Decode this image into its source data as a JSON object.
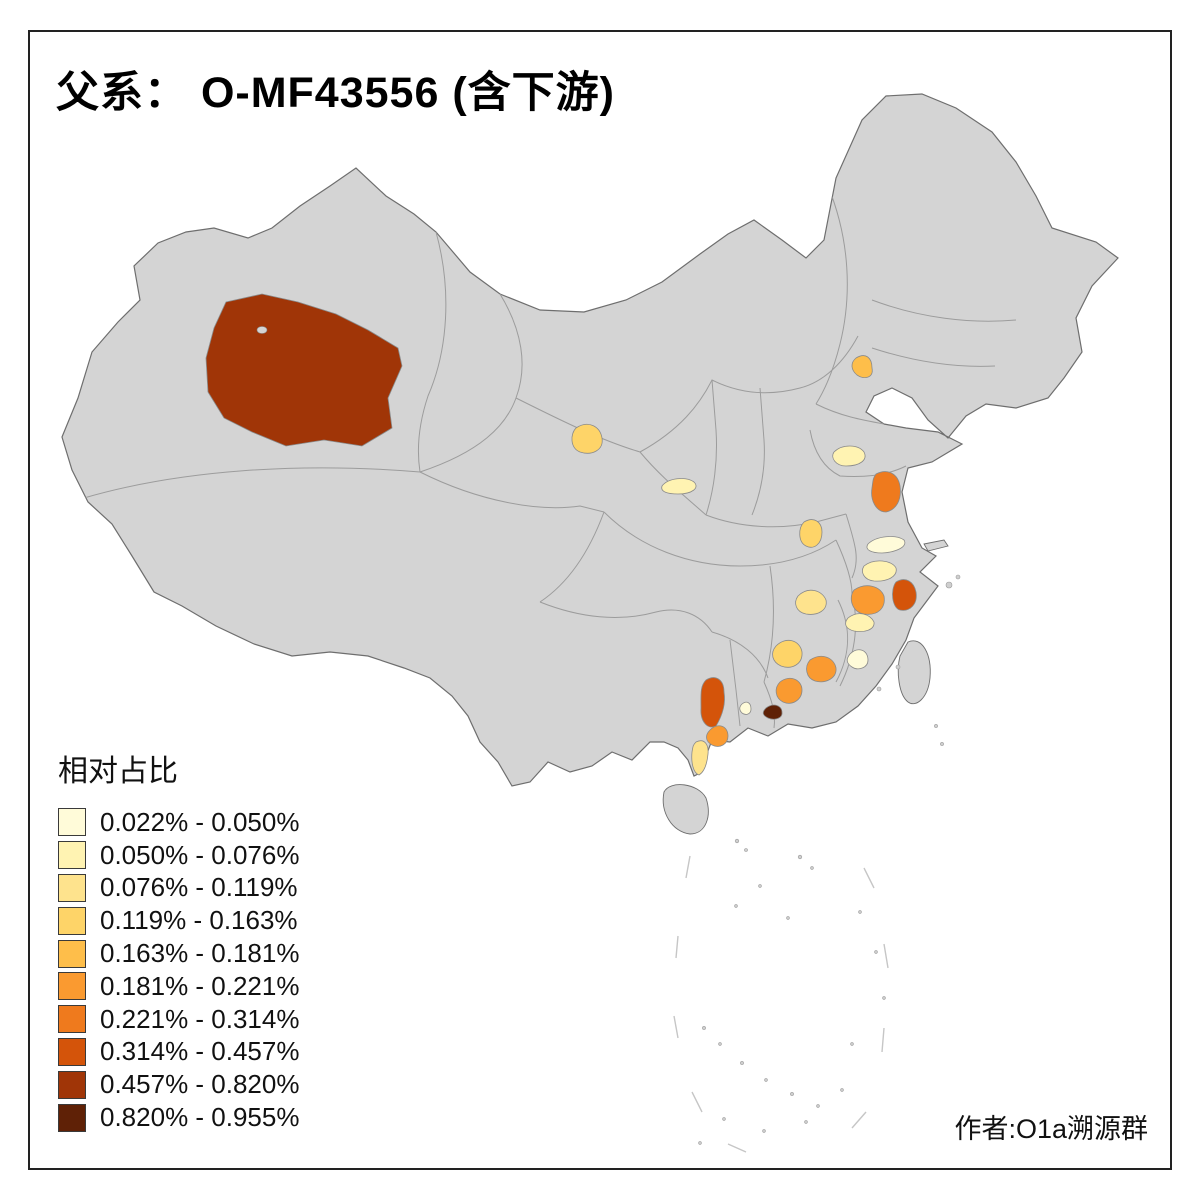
{
  "page": {
    "background": "#ffffff",
    "frame_color": "#222222"
  },
  "title": "父系： O-MF43556 (含下游)",
  "attribution": "作者:O1a溯源群",
  "legend": {
    "title": "相对占比",
    "buckets": [
      {
        "label": "0.022% - 0.050%",
        "color": "#FFFBD9"
      },
      {
        "label": "0.050% - 0.076%",
        "color": "#FFF3B2"
      },
      {
        "label": "0.076% - 0.119%",
        "color": "#FEE38D"
      },
      {
        "label": "0.119% - 0.163%",
        "color": "#FED468"
      },
      {
        "label": "0.163% - 0.181%",
        "color": "#FEBE4A"
      },
      {
        "label": "0.181% - 0.221%",
        "color": "#FA9A30"
      },
      {
        "label": "0.221% - 0.314%",
        "color": "#EF7A1D"
      },
      {
        "label": "0.314% - 0.457%",
        "color": "#D4540A"
      },
      {
        "label": "0.457% - 0.820%",
        "color": "#A03507"
      },
      {
        "label": "0.820% - 0.955%",
        "color": "#5F2106"
      }
    ]
  },
  "map": {
    "land_color": "#d4d4d4",
    "outline_color": "#6e6e6e",
    "province_border_color": "#9c9c9c",
    "sea_color": "#ffffff"
  },
  "chart_data": {
    "type": "choropleth",
    "title": "父系： O-MF43556 (含下游)",
    "legend_title": "相对占比",
    "unit": "%",
    "bins": [
      "0.022% - 0.050%",
      "0.050% - 0.076%",
      "0.076% - 0.119%",
      "0.119% - 0.163%",
      "0.163% - 0.181%",
      "0.181% - 0.221%",
      "0.221% - 0.314%",
      "0.314% - 0.457%",
      "0.457% - 0.820%",
      "0.820% - 0.955%"
    ],
    "regions": [
      {
        "area": "southern-xinjiang",
        "bucket": 8,
        "range": "0.457% - 0.820%"
      },
      {
        "area": "central-gansu",
        "bucket": 3,
        "range": "0.119% - 0.163%"
      },
      {
        "area": "central-shaanxi",
        "bucket": 1,
        "range": "0.050% - 0.076%"
      },
      {
        "area": "hebei-coast",
        "bucket": 4,
        "range": "0.163% - 0.181%"
      },
      {
        "area": "central-shandong",
        "bucket": 1,
        "range": "0.050% - 0.076%"
      },
      {
        "area": "jiangsu-coast",
        "bucket": 6,
        "range": "0.221% - 0.314%"
      },
      {
        "area": "central-anhui",
        "bucket": 3,
        "range": "0.119% - 0.163%"
      },
      {
        "area": "southern-jiangsu",
        "bucket": 0,
        "range": "0.022% - 0.050%"
      },
      {
        "area": "northern-zhejiang",
        "bucket": 1,
        "range": "0.050% - 0.076%"
      },
      {
        "area": "central-zhejiang",
        "bucket": 5,
        "range": "0.181% - 0.221%"
      },
      {
        "area": "zhejiang-coast",
        "bucket": 7,
        "range": "0.314% - 0.457%"
      },
      {
        "area": "southern-zhejiang",
        "bucket": 1,
        "range": "0.050% - 0.076%"
      },
      {
        "area": "northeastern-jiangxi",
        "bucket": 2,
        "range": "0.076% - 0.119%"
      },
      {
        "area": "southern-jiangxi",
        "bucket": 3,
        "range": "0.119% - 0.163%"
      },
      {
        "area": "western-fujian",
        "bucket": 5,
        "range": "0.181% - 0.221%"
      },
      {
        "area": "coastal-fujian",
        "bucket": 0,
        "range": "0.022% - 0.050%"
      },
      {
        "area": "northern-guangdong",
        "bucket": 5,
        "range": "0.181% - 0.221%"
      },
      {
        "area": "eastern-guangxi",
        "bucket": 7,
        "range": "0.314% - 0.457%"
      },
      {
        "area": "southeastern-guangxi",
        "bucket": 5,
        "range": "0.181% - 0.221%"
      },
      {
        "area": "pearl-river-delta",
        "bucket": 9,
        "range": "0.820% - 0.955%"
      },
      {
        "area": "western-guangdong",
        "bucket": 0,
        "range": "0.022% - 0.050%"
      },
      {
        "area": "leizhou-peninsula",
        "bucket": 2,
        "range": "0.076% - 0.119%"
      }
    ]
  }
}
